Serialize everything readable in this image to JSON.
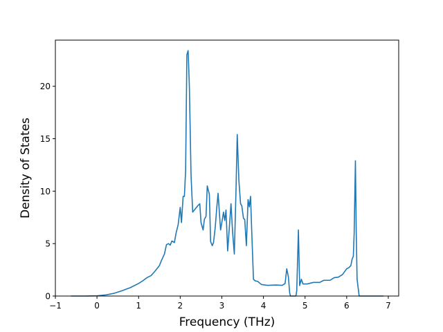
{
  "chart_data": {
    "type": "line",
    "title": "",
    "xlabel": "Frequency (THz)",
    "ylabel": "Density of States",
    "xlim": [
      -1,
      7.25
    ],
    "ylim": [
      0,
      24.4
    ],
    "xticks": [
      -1,
      0,
      1,
      2,
      3,
      4,
      5,
      6,
      7
    ],
    "yticks": [
      0,
      5,
      10,
      15,
      20
    ],
    "grid": false,
    "legend": "none",
    "series": [
      {
        "color": "#1f77b4",
        "points": [
          [
            -0.62,
            0.0
          ],
          [
            -0.3,
            0.0
          ],
          [
            0.0,
            0.02
          ],
          [
            0.2,
            0.1
          ],
          [
            0.4,
            0.25
          ],
          [
            0.6,
            0.5
          ],
          [
            0.8,
            0.8
          ],
          [
            1.0,
            1.2
          ],
          [
            1.1,
            1.45
          ],
          [
            1.2,
            1.75
          ],
          [
            1.3,
            1.95
          ],
          [
            1.4,
            2.4
          ],
          [
            1.5,
            2.9
          ],
          [
            1.55,
            3.4
          ],
          [
            1.62,
            4.0
          ],
          [
            1.67,
            4.9
          ],
          [
            1.72,
            5.0
          ],
          [
            1.76,
            4.85
          ],
          [
            1.8,
            5.25
          ],
          [
            1.86,
            5.1
          ],
          [
            1.9,
            6.0
          ],
          [
            1.95,
            6.8
          ],
          [
            2.0,
            8.45
          ],
          [
            2.03,
            7.0
          ],
          [
            2.07,
            9.5
          ],
          [
            2.1,
            9.5
          ],
          [
            2.13,
            12.0
          ],
          [
            2.16,
            23.0
          ],
          [
            2.19,
            23.4
          ],
          [
            2.22,
            20.0
          ],
          [
            2.26,
            11.5
          ],
          [
            2.3,
            8.0
          ],
          [
            2.36,
            8.3
          ],
          [
            2.42,
            8.6
          ],
          [
            2.47,
            8.8
          ],
          [
            2.5,
            7.0
          ],
          [
            2.55,
            6.3
          ],
          [
            2.58,
            7.3
          ],
          [
            2.62,
            7.6
          ],
          [
            2.65,
            10.5
          ],
          [
            2.7,
            9.7
          ],
          [
            2.73,
            5.2
          ],
          [
            2.77,
            4.8
          ],
          [
            2.8,
            5.1
          ],
          [
            2.84,
            6.5
          ],
          [
            2.88,
            8.5
          ],
          [
            2.91,
            9.8
          ],
          [
            2.94,
            8.0
          ],
          [
            2.97,
            6.3
          ],
          [
            3.0,
            7.0
          ],
          [
            3.04,
            8.0
          ],
          [
            3.07,
            7.2
          ],
          [
            3.1,
            8.2
          ],
          [
            3.14,
            4.3
          ],
          [
            3.18,
            6.5
          ],
          [
            3.22,
            8.8
          ],
          [
            3.26,
            6.0
          ],
          [
            3.3,
            4.0
          ],
          [
            3.34,
            10.0
          ],
          [
            3.37,
            15.4
          ],
          [
            3.41,
            11.0
          ],
          [
            3.45,
            8.8
          ],
          [
            3.48,
            8.6
          ],
          [
            3.52,
            7.4
          ],
          [
            3.55,
            7.3
          ],
          [
            3.59,
            4.8
          ],
          [
            3.63,
            9.2
          ],
          [
            3.66,
            8.5
          ],
          [
            3.69,
            9.5
          ],
          [
            3.72,
            6.0
          ],
          [
            3.76,
            1.6
          ],
          [
            3.8,
            1.45
          ],
          [
            3.86,
            1.4
          ],
          [
            3.95,
            1.1
          ],
          [
            4.1,
            1.02
          ],
          [
            4.3,
            1.05
          ],
          [
            4.45,
            1.02
          ],
          [
            4.52,
            1.2
          ],
          [
            4.56,
            2.6
          ],
          [
            4.6,
            1.8
          ],
          [
            4.63,
            0.3
          ],
          [
            4.65,
            0.0
          ],
          [
            4.78,
            0.0
          ],
          [
            4.8,
            0.5
          ],
          [
            4.84,
            6.3
          ],
          [
            4.87,
            1.0
          ],
          [
            4.91,
            1.6
          ],
          [
            4.95,
            1.15
          ],
          [
            5.05,
            1.15
          ],
          [
            5.2,
            1.3
          ],
          [
            5.35,
            1.3
          ],
          [
            5.45,
            1.5
          ],
          [
            5.6,
            1.5
          ],
          [
            5.7,
            1.75
          ],
          [
            5.8,
            1.8
          ],
          [
            5.9,
            2.05
          ],
          [
            6.0,
            2.6
          ],
          [
            6.05,
            2.7
          ],
          [
            6.1,
            2.9
          ],
          [
            6.13,
            3.5
          ],
          [
            6.16,
            3.8
          ],
          [
            6.18,
            6.0
          ],
          [
            6.21,
            12.9
          ],
          [
            6.23,
            6.0
          ],
          [
            6.25,
            1.6
          ],
          [
            6.3,
            0.0
          ],
          [
            6.6,
            0.0
          ],
          [
            6.88,
            0.0
          ]
        ]
      }
    ]
  }
}
